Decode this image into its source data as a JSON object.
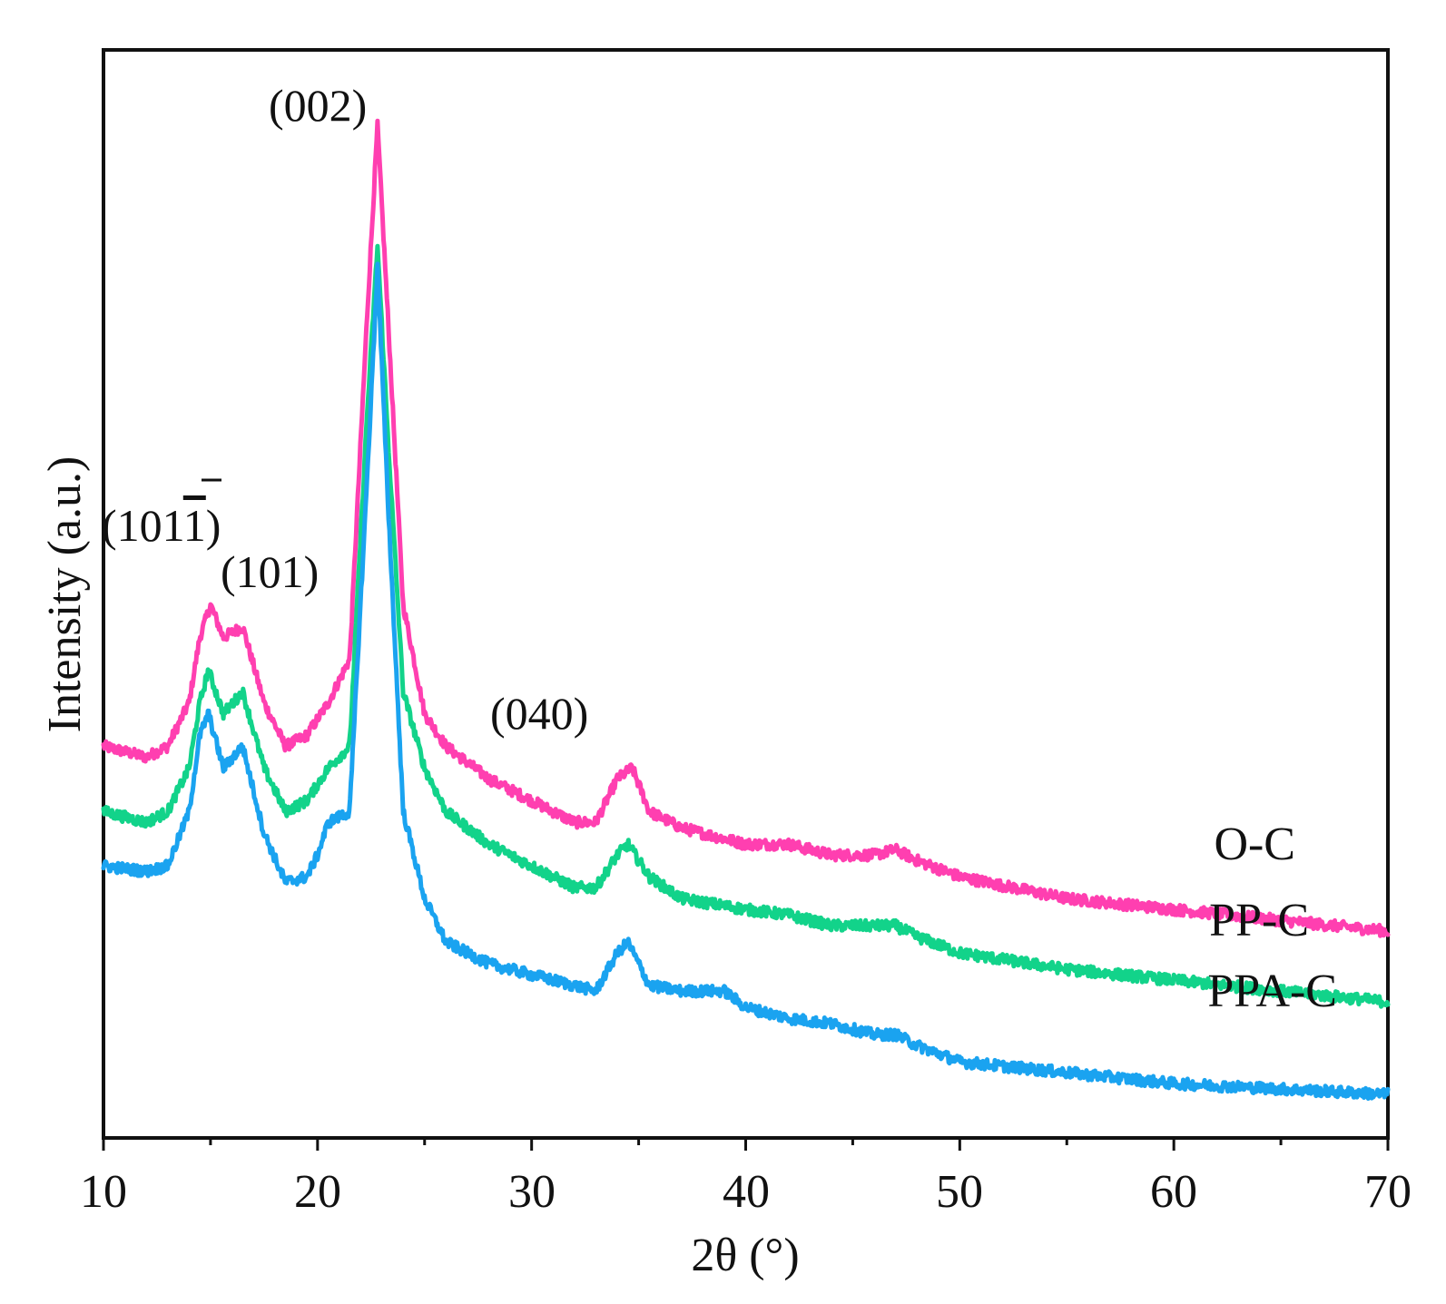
{
  "chart_data": {
    "type": "line",
    "title": "",
    "xlabel": "2θ (°)",
    "ylabel": "Intensity (a.u.)",
    "xlim": [
      10,
      70
    ],
    "ylim": [
      0,
      100
    ],
    "xticks": [
      10,
      20,
      30,
      40,
      50,
      60,
      70
    ],
    "xtick_labels": [
      "10",
      "20",
      "30",
      "40",
      "50",
      "60",
      "70"
    ],
    "yticks_shown": false,
    "grid": false,
    "series": [
      {
        "name": "O-C",
        "color": "#ff3fb0",
        "points": [
          [
            10,
            36
          ],
          [
            12,
            35
          ],
          [
            13,
            36
          ],
          [
            14,
            40
          ],
          [
            14.5,
            46
          ],
          [
            15,
            49
          ],
          [
            15.6,
            46
          ],
          [
            16.5,
            47
          ],
          [
            17.5,
            40
          ],
          [
            18.5,
            36
          ],
          [
            19.5,
            37
          ],
          [
            20.5,
            40
          ],
          [
            21.5,
            44
          ],
          [
            22.3,
            75
          ],
          [
            22.8,
            93
          ],
          [
            23.3,
            75
          ],
          [
            24,
            49
          ],
          [
            25,
            39
          ],
          [
            26,
            36
          ],
          [
            28,
            33
          ],
          [
            30,
            31
          ],
          [
            32,
            29
          ],
          [
            33,
            29
          ],
          [
            34,
            33
          ],
          [
            34.7,
            34
          ],
          [
            35.5,
            30
          ],
          [
            37,
            28.5
          ],
          [
            40,
            27
          ],
          [
            42,
            27
          ],
          [
            44,
            26
          ],
          [
            46,
            26
          ],
          [
            47,
            26.5
          ],
          [
            48,
            25.5
          ],
          [
            50,
            24
          ],
          [
            55,
            22
          ],
          [
            60,
            21
          ],
          [
            65,
            20
          ],
          [
            70,
            19
          ]
        ]
      },
      {
        "name": "PP-C",
        "color": "#12d38a",
        "points": [
          [
            10,
            30
          ],
          [
            12,
            29
          ],
          [
            13,
            30
          ],
          [
            14,
            34
          ],
          [
            14.5,
            40
          ],
          [
            14.9,
            43
          ],
          [
            15.6,
            39
          ],
          [
            16.5,
            41
          ],
          [
            17.5,
            34
          ],
          [
            18.5,
            30
          ],
          [
            19.5,
            31
          ],
          [
            20.5,
            34
          ],
          [
            21.5,
            36
          ],
          [
            22.3,
            66
          ],
          [
            22.8,
            82
          ],
          [
            23.3,
            64
          ],
          [
            24,
            41
          ],
          [
            25,
            34
          ],
          [
            26,
            30
          ],
          [
            28,
            27
          ],
          [
            30,
            25
          ],
          [
            32,
            23
          ],
          [
            33,
            23
          ],
          [
            34,
            26
          ],
          [
            34.5,
            27
          ],
          [
            35.5,
            24
          ],
          [
            37,
            22
          ],
          [
            40,
            21
          ],
          [
            42,
            20.5
          ],
          [
            44,
            19.5
          ],
          [
            46,
            19.5
          ],
          [
            47,
            19.5
          ],
          [
            48,
            18.5
          ],
          [
            50,
            17
          ],
          [
            55,
            15.5
          ],
          [
            60,
            14.5
          ],
          [
            65,
            13.5
          ],
          [
            70,
            12.5
          ]
        ]
      },
      {
        "name": "PPA-C",
        "color": "#1aa3f0",
        "points": [
          [
            10,
            25
          ],
          [
            12,
            24.5
          ],
          [
            13,
            25
          ],
          [
            14,
            30
          ],
          [
            14.5,
            37
          ],
          [
            14.9,
            39
          ],
          [
            15.6,
            34
          ],
          [
            16.5,
            36
          ],
          [
            17.5,
            28
          ],
          [
            18.5,
            23.5
          ],
          [
            19.5,
            24
          ],
          [
            20,
            26
          ],
          [
            20.5,
            29
          ],
          [
            21.5,
            30
          ],
          [
            22.3,
            60
          ],
          [
            22.8,
            80
          ],
          [
            23.3,
            58
          ],
          [
            24,
            30
          ],
          [
            25,
            22
          ],
          [
            26,
            18
          ],
          [
            28,
            16
          ],
          [
            30,
            15
          ],
          [
            32,
            14
          ],
          [
            33,
            13.5
          ],
          [
            34,
            17
          ],
          [
            34.5,
            18
          ],
          [
            35.5,
            14
          ],
          [
            37,
            13.5
          ],
          [
            39,
            13.5
          ],
          [
            40,
            12
          ],
          [
            42,
            11
          ],
          [
            44,
            10.5
          ],
          [
            46,
            9.5
          ],
          [
            47,
            9.5
          ],
          [
            48,
            8.5
          ],
          [
            50,
            7
          ],
          [
            55,
            6
          ],
          [
            60,
            5
          ],
          [
            65,
            4.5
          ],
          [
            70,
            4
          ]
        ]
      }
    ],
    "annotations": [
      {
        "text": "(101",
        "overbar_digit": "1",
        "close": ")",
        "x": 13,
        "y": 53
      },
      {
        "text": "(101)",
        "x": 18.6,
        "y": 49.5
      },
      {
        "text": "(002)",
        "x": 22.6,
        "y": 94.5
      },
      {
        "text": "(040)",
        "x": 34.2,
        "y": 36
      }
    ]
  }
}
